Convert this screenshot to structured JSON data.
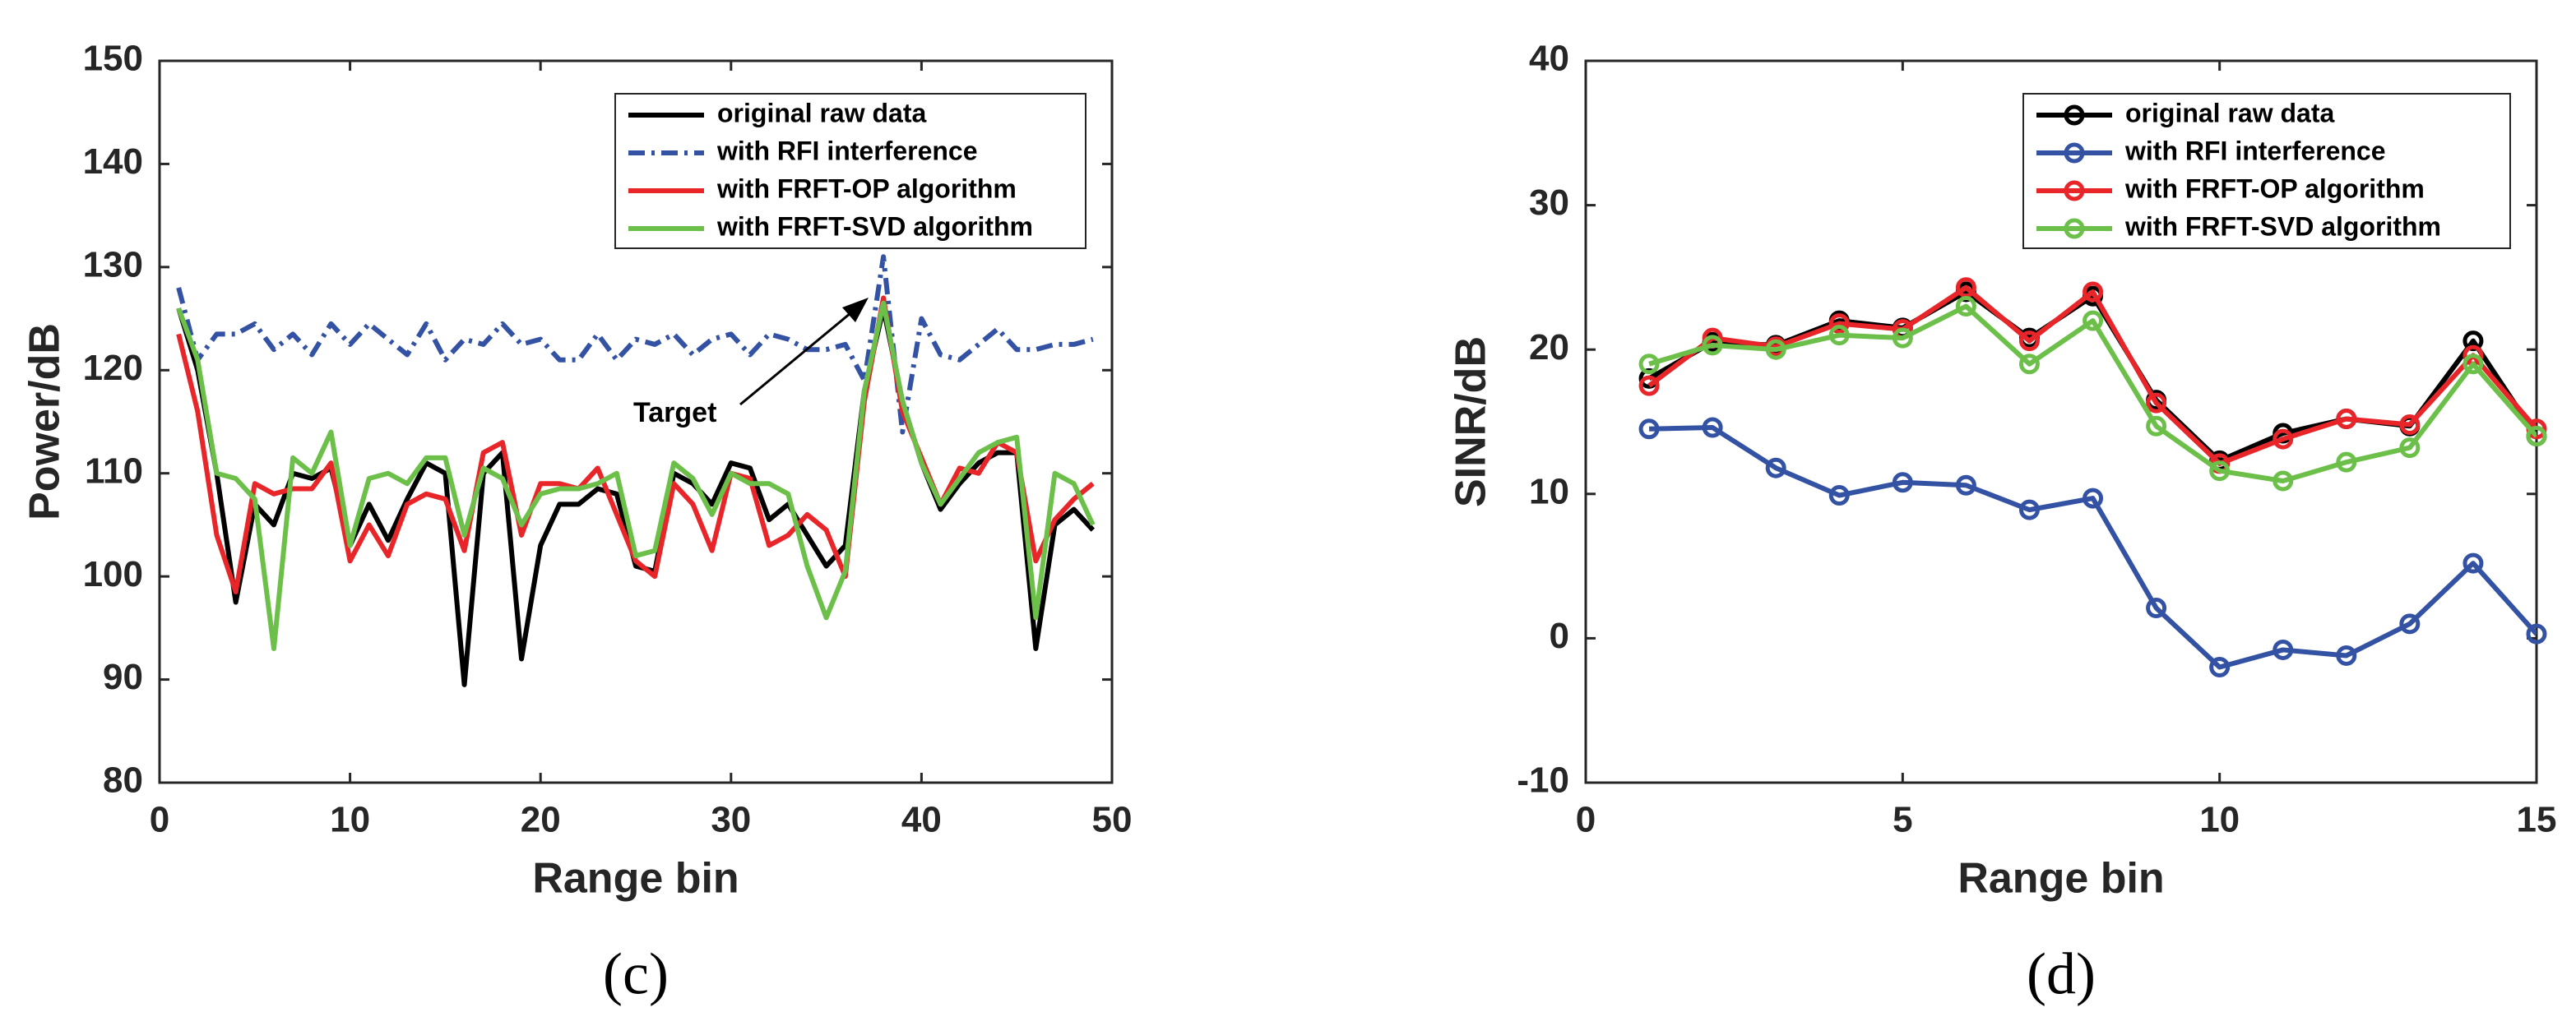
{
  "chart_data": [
    {
      "type": "line",
      "caption": "(c)",
      "xlabel": "Range bin",
      "ylabel": "Power/dB",
      "x": [
        1,
        2,
        3,
        4,
        5,
        6,
        7,
        8,
        9,
        10,
        11,
        12,
        13,
        14,
        15,
        16,
        17,
        18,
        19,
        20,
        21,
        22,
        23,
        24,
        25,
        26,
        27,
        28,
        29,
        30,
        31,
        32,
        33,
        34,
        35,
        36,
        37,
        38,
        39,
        40,
        41,
        42,
        43,
        44,
        45,
        46,
        47,
        48,
        49
      ],
      "xlim": [
        0,
        50
      ],
      "xticks": [
        0,
        10,
        20,
        30,
        40,
        50
      ],
      "ylim": [
        80,
        150
      ],
      "yticks": [
        80,
        90,
        100,
        110,
        120,
        130,
        140,
        150
      ],
      "legend": "upper right",
      "annotation": "Target",
      "series": [
        {
          "name": "original raw data",
          "color": "#000000",
          "line_style": "solid",
          "values": [
            126,
            120,
            110,
            97.5,
            107,
            105,
            110,
            109.5,
            110.5,
            103,
            107,
            103.5,
            107.5,
            111,
            110,
            89.5,
            110,
            112,
            92,
            103,
            107,
            107,
            108.5,
            108,
            101,
            100.5,
            110,
            109,
            107,
            111,
            110.5,
            105.5,
            107,
            104,
            101,
            103,
            118,
            126,
            117,
            111,
            106.5,
            109,
            111,
            112,
            112,
            93,
            105,
            106.5,
            104.5
          ]
        },
        {
          "name": "with RFI interference",
          "color": "#3452a4",
          "line_style": "dashdot",
          "values": [
            128,
            121,
            123.5,
            123.5,
            124.5,
            122,
            123.5,
            121.5,
            124.5,
            122.5,
            124.5,
            123,
            121.5,
            124.5,
            121,
            123,
            122.5,
            124.5,
            122.5,
            123,
            121,
            121,
            123.5,
            121,
            123,
            122.5,
            123.5,
            121.5,
            123,
            123.5,
            121.5,
            123.5,
            123,
            122,
            122,
            122.5,
            119,
            131,
            114,
            125,
            121.5,
            121,
            122.5,
            124,
            122,
            122,
            122.5,
            122.5,
            123
          ]
        },
        {
          "name": "with FRFT-OP algorithm",
          "color": "#e8262a",
          "line_style": "solid",
          "values": [
            123.5,
            116,
            104,
            98.5,
            109,
            108,
            108.5,
            108.5,
            111,
            101.5,
            105,
            102,
            107,
            108,
            107.5,
            102.5,
            112,
            113,
            104,
            109,
            109,
            108.5,
            110.5,
            106,
            101.5,
            100,
            109,
            107,
            102.5,
            110,
            109.5,
            103,
            104,
            106,
            104.5,
            100,
            117,
            127,
            116,
            111.5,
            107,
            110.5,
            110,
            113,
            112,
            101.5,
            105.5,
            107.5,
            109
          ]
        },
        {
          "name": "with FRFT-SVD algorithm",
          "color": "#6cc04a",
          "line_style": "solid",
          "values": [
            126,
            121,
            110,
            109.5,
            107.5,
            93,
            111.5,
            110,
            114,
            103,
            109.5,
            110,
            109,
            111.5,
            111.5,
            104,
            110.5,
            109.5,
            105,
            108,
            108.5,
            108.5,
            109,
            110,
            102,
            102.5,
            111,
            109.5,
            106,
            110,
            109,
            109,
            108,
            101,
            96,
            100.5,
            118,
            126.5,
            117,
            111,
            107,
            109.5,
            112,
            113,
            113.5,
            96,
            110,
            109,
            105
          ]
        }
      ]
    },
    {
      "type": "line",
      "caption": "(d)",
      "xlabel": "Range bin",
      "ylabel": "SINR/dB",
      "x": [
        1,
        2,
        3,
        4,
        5,
        6,
        7,
        8,
        9,
        10,
        11,
        12,
        13,
        14,
        15
      ],
      "xlim": [
        0,
        15
      ],
      "xticks": [
        0,
        5,
        10,
        15
      ],
      "ylim": [
        -10,
        40
      ],
      "yticks": [
        -10,
        0,
        10,
        20,
        30,
        40
      ],
      "legend": "upper right",
      "marker": "circle",
      "series": [
        {
          "name": "original raw data",
          "color": "#000000",
          "line_style": "solid",
          "values": [
            18,
            20.5,
            20.3,
            22,
            21.5,
            24,
            20.8,
            23.7,
            16.5,
            12.3,
            14.2,
            15.2,
            14.7,
            20.6,
            14
          ]
        },
        {
          "name": "with RFI interference",
          "color": "#3452a4",
          "line_style": "solid",
          "values": [
            14.5,
            14.6,
            11.8,
            9.9,
            10.8,
            10.6,
            8.9,
            9.7,
            2.1,
            -2,
            -0.8,
            -1.2,
            1,
            5.2,
            0.3
          ]
        },
        {
          "name": "with FRFT-OP algorithm",
          "color": "#e8262a",
          "line_style": "solid",
          "values": [
            17.5,
            20.8,
            20.2,
            21.8,
            21.4,
            24.3,
            20.6,
            24,
            16.3,
            12.1,
            13.8,
            15.2,
            14.8,
            19.6,
            14.5
          ]
        },
        {
          "name": "with FRFT-SVD algorithm",
          "color": "#6cc04a",
          "line_style": "solid",
          "values": [
            19,
            20.3,
            20,
            21,
            20.8,
            23,
            19,
            22,
            14.7,
            11.6,
            10.9,
            12.2,
            13.2,
            19,
            14
          ]
        }
      ]
    }
  ]
}
